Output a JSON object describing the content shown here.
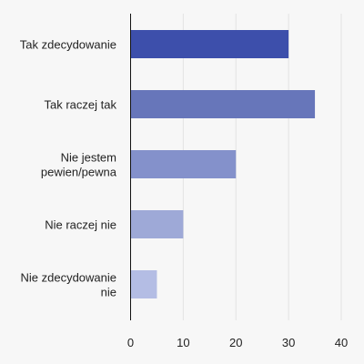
{
  "chart_data": {
    "type": "bar",
    "orientation": "horizontal",
    "categories": [
      [
        "Tak zdecydowanie"
      ],
      [
        "Tak raczej tak"
      ],
      [
        "Nie jestem",
        "pewien/pewna"
      ],
      [
        "Nie raczej nie"
      ],
      [
        "Nie zdecydowanie",
        "nie"
      ]
    ],
    "values": [
      30,
      35,
      20,
      10,
      5
    ],
    "bar_colors": [
      "#3d4fab",
      "#6776ba",
      "#8491cb",
      "#9ea9d7",
      "#b4bde4"
    ],
    "xlim": [
      0,
      40
    ],
    "xticks": [
      "0",
      "10",
      "20",
      "30",
      "40"
    ],
    "grid": "vertical",
    "title": "",
    "xlabel": "",
    "ylabel": ""
  }
}
